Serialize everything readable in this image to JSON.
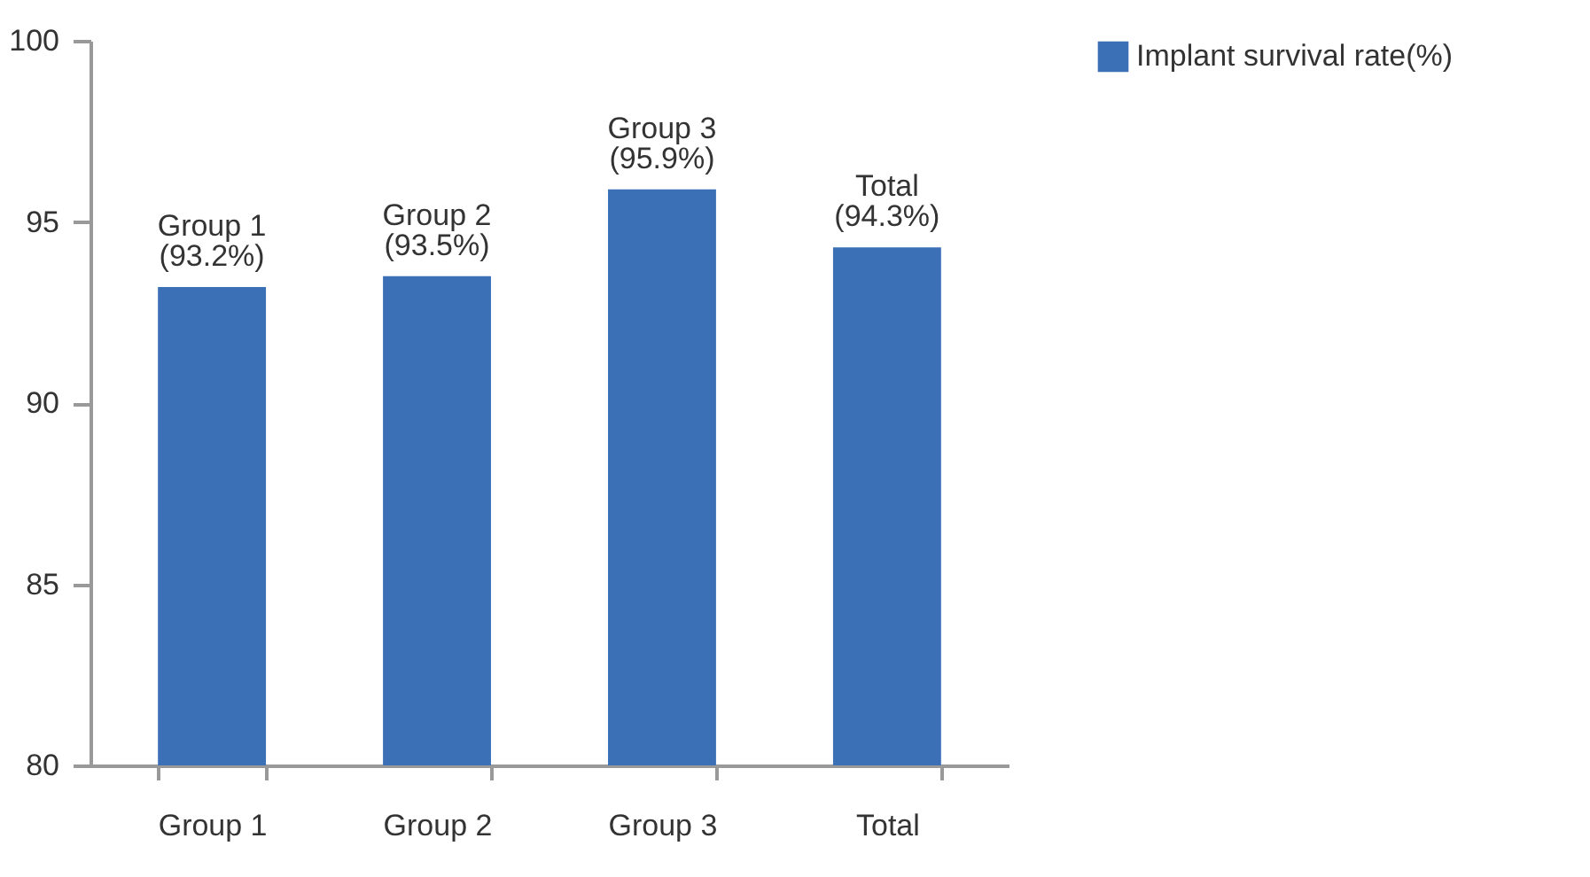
{
  "chart_data": {
    "type": "bar",
    "categories": [
      "Group 1",
      "Group 2",
      "Group 3",
      "Total"
    ],
    "series": [
      {
        "name": "Implant survival rate(%)",
        "color": "#3b70b6",
        "values": [
          93.2,
          93.5,
          95.9,
          94.3
        ],
        "value_labels": [
          "Group 1\n(93.2%)",
          "Group 2\n(93.5%)",
          "Group 3\n(95.9%)",
          "Total\n(94.3%)"
        ]
      }
    ],
    "ylim": [
      80,
      100
    ],
    "yticks": [
      80,
      85,
      90,
      95,
      100
    ],
    "grid": false,
    "legend": "right"
  }
}
